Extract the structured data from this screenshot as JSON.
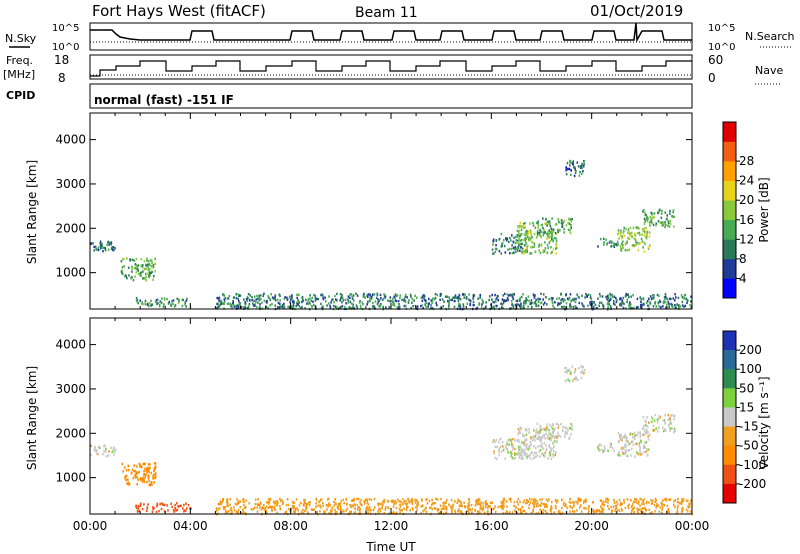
{
  "header": {
    "title": "Fort Hays West (fitACF)",
    "beam": "Beam 11",
    "date": "01/Oct/2019"
  },
  "status_panels": {
    "nsky_label": "N.Sky",
    "nsearch_label": "N.Search",
    "noise_ticks": [
      "10^5",
      "10^0"
    ],
    "freq_label_1": "Freq.",
    "freq_label_2": "[MHz]",
    "freq_ticks": [
      "18",
      "8"
    ],
    "nave_label": "Nave",
    "nave_ticks": [
      "60",
      "0"
    ],
    "cpid_label": "CPID",
    "cpid_text": "normal (fast) -151 IF"
  },
  "colorbars": {
    "power": {
      "label": "Power [dB]",
      "ticks": [
        "4",
        "8",
        "12",
        "16",
        "20",
        "24",
        "28"
      ],
      "colors": [
        "#0000ff",
        "#1e3c96",
        "#2a7a5a",
        "#49aa55",
        "#88c83a",
        "#e8d41c",
        "#ffa000",
        "#f06010",
        "#e00000"
      ]
    },
    "velocity": {
      "label": "Velocity [m s⁻¹]",
      "ticks": [
        "200",
        "100",
        "50",
        "15",
        "-15",
        "-50",
        "-100",
        "-200"
      ],
      "colors": [
        "#1e32b4",
        "#2a6a96",
        "#2f8c50",
        "#7cd23c",
        "#c8c8c8",
        "#f0a01e",
        "#ff8c00",
        "#f05014",
        "#e60000"
      ]
    }
  },
  "chart_data": [
    {
      "type": "heatmap",
      "title": "",
      "ylabel": "Slant Range [km]",
      "xlabel": "",
      "ylim": [
        180,
        4600
      ],
      "xlim": [
        0,
        24
      ],
      "yticks": [
        "1000",
        "2000",
        "3000",
        "4000"
      ],
      "colorbar": "power",
      "echo_regions": [
        {
          "t": [
            0.0,
            1.0
          ],
          "r": [
            1500,
            1750
          ],
          "power_db": 10
        },
        {
          "t": [
            1.2,
            2.6
          ],
          "r": [
            850,
            1350
          ],
          "power_db": 14
        },
        {
          "t": [
            1.8,
            4.0
          ],
          "r": [
            250,
            450
          ],
          "power_db": 12
        },
        {
          "t": [
            5.0,
            24.0
          ],
          "r": [
            200,
            550
          ],
          "power_db": 10
        },
        {
          "t": [
            16.0,
            17.4
          ],
          "r": [
            1450,
            1900
          ],
          "power_db": 11
        },
        {
          "t": [
            17.0,
            18.6
          ],
          "r": [
            1450,
            2150
          ],
          "power_db": 16
        },
        {
          "t": [
            17.8,
            19.2
          ],
          "r": [
            1900,
            2250
          ],
          "power_db": 14
        },
        {
          "t": [
            20.2,
            21.0
          ],
          "r": [
            1600,
            1800
          ],
          "power_db": 10
        },
        {
          "t": [
            21.0,
            22.3
          ],
          "r": [
            1500,
            2050
          ],
          "power_db": 18
        },
        {
          "t": [
            22.0,
            23.3
          ],
          "r": [
            2050,
            2450
          ],
          "power_db": 14
        },
        {
          "t": [
            18.9,
            19.7
          ],
          "r": [
            3200,
            3550
          ],
          "power_db": 8
        }
      ]
    },
    {
      "type": "heatmap",
      "title": "",
      "ylabel": "Slant Range [km]",
      "xlabel": "Time UT",
      "ylim": [
        180,
        4600
      ],
      "xlim": [
        0,
        24
      ],
      "yticks": [
        "1000",
        "2000",
        "3000",
        "4000"
      ],
      "xticks": [
        "00:00",
        "04:00",
        "08:00",
        "12:00",
        "16:00",
        "20:00",
        "00:00"
      ],
      "colorbar": "velocity",
      "echo_regions": [
        {
          "t": [
            0.0,
            1.0
          ],
          "r": [
            1500,
            1750
          ],
          "velocity": 0
        },
        {
          "t": [
            1.2,
            2.6
          ],
          "r": [
            850,
            1350
          ],
          "velocity": -75
        },
        {
          "t": [
            1.8,
            4.0
          ],
          "r": [
            250,
            450
          ],
          "velocity": -150
        },
        {
          "t": [
            5.0,
            24.0
          ],
          "r": [
            200,
            550
          ],
          "velocity": -40
        },
        {
          "t": [
            16.0,
            17.4
          ],
          "r": [
            1450,
            1900
          ],
          "velocity": 0
        },
        {
          "t": [
            17.0,
            18.6
          ],
          "r": [
            1450,
            2150
          ],
          "velocity": 0
        },
        {
          "t": [
            17.8,
            19.2
          ],
          "r": [
            1900,
            2250
          ],
          "velocity": 0
        },
        {
          "t": [
            20.2,
            21.0
          ],
          "r": [
            1600,
            1800
          ],
          "velocity": 0
        },
        {
          "t": [
            21.0,
            22.3
          ],
          "r": [
            1500,
            2050
          ],
          "velocity": 0
        },
        {
          "t": [
            22.0,
            23.3
          ],
          "r": [
            2050,
            2450
          ],
          "velocity": 0
        },
        {
          "t": [
            18.9,
            19.7
          ],
          "r": [
            3200,
            3550
          ],
          "velocity": 0
        }
      ]
    }
  ]
}
